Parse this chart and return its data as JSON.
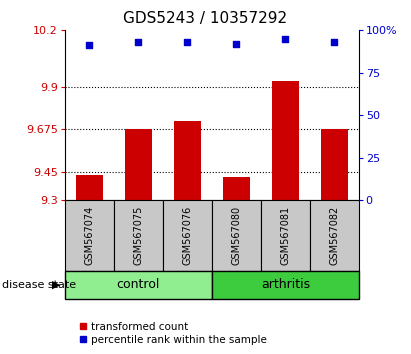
{
  "title": "GDS5243 / 10357292",
  "samples": [
    "GSM567074",
    "GSM567075",
    "GSM567076",
    "GSM567080",
    "GSM567081",
    "GSM567082"
  ],
  "red_values": [
    9.43,
    9.675,
    9.72,
    9.42,
    9.93,
    9.675
  ],
  "blue_values": [
    91,
    93,
    93,
    92,
    95,
    93
  ],
  "ylim_left": [
    9.3,
    10.2
  ],
  "ylim_right": [
    0,
    100
  ],
  "yticks_left": [
    9.3,
    9.45,
    9.675,
    9.9,
    10.2
  ],
  "yticks_right": [
    0,
    25,
    50,
    75,
    100
  ],
  "ytick_labels_left": [
    "9.3",
    "9.45",
    "9.675",
    "9.9",
    "10.2"
  ],
  "ytick_labels_right": [
    "0",
    "25",
    "50",
    "75",
    "100%"
  ],
  "hlines": [
    9.45,
    9.675,
    9.9
  ],
  "bar_color": "#cc0000",
  "dot_color": "#0000cc",
  "bar_baseline": 9.3,
  "groups": [
    {
      "label": "control",
      "indices": [
        0,
        1,
        2
      ],
      "color": "#90ee90"
    },
    {
      "label": "arthritis",
      "indices": [
        3,
        4,
        5
      ],
      "color": "#3dcc3d"
    }
  ],
  "sample_box_color": "#c8c8c8",
  "xlabel_label": "disease state",
  "legend_red_label": "transformed count",
  "legend_blue_label": "percentile rank within the sample",
  "title_fontsize": 11,
  "tick_fontsize": 8,
  "bar_width": 0.55
}
